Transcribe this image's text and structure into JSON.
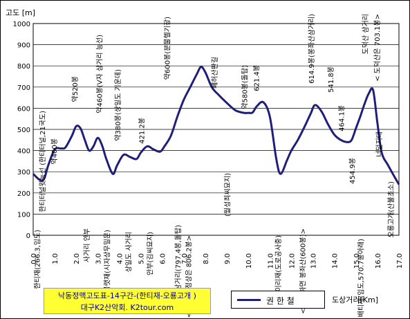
{
  "chart_data": {
    "type": "line",
    "ylabel": "고도 [m]",
    "xlabel": "도상거리[Km]",
    "xlim": [
      0,
      17
    ],
    "ylim": [
      0,
      1000
    ],
    "x_ticks": [
      "0.0",
      "1.0",
      "2.0",
      "3.0",
      "4.0",
      "5.0",
      "6.0",
      "7.0",
      "8.0",
      "9.0",
      "10.0",
      "11.0",
      "12.0",
      "13.0",
      "14.0",
      "15.0",
      "16.0",
      "17.0"
    ],
    "y_ticks": [
      "0",
      "100",
      "200",
      "300",
      "400",
      "500",
      "600",
      "700",
      "800",
      "900",
      "1000"
    ],
    "grid": true,
    "series": [
      {
        "name": "권 한 철",
        "color": "#1f1f7a",
        "x": [
          0.0,
          0.3,
          0.5,
          0.7,
          1.0,
          1.3,
          1.5,
          1.8,
          2.0,
          2.2,
          2.4,
          2.6,
          2.8,
          3.0,
          3.2,
          3.4,
          3.7,
          3.9,
          4.2,
          4.5,
          4.8,
          5.0,
          5.3,
          5.6,
          5.9,
          6.1,
          6.4,
          6.7,
          7.0,
          7.3,
          7.6,
          7.8,
          8.0,
          8.3,
          8.6,
          9.0,
          9.4,
          9.8,
          10.0,
          10.2,
          10.4,
          10.7,
          11.0,
          11.3,
          11.5,
          11.8,
          12.0,
          12.3,
          12.6,
          12.9,
          13.1,
          13.4,
          13.7,
          14.0,
          14.3,
          14.6,
          14.8,
          15.0,
          15.2,
          15.4,
          15.6,
          15.8,
          16.0,
          16.2,
          16.5,
          16.8,
          17.0
        ],
        "values": [
          290,
          262,
          265,
          330,
          405,
          410,
          415,
          470,
          515,
          505,
          450,
          400,
          420,
          460,
          425,
          360,
          290,
          330,
          380,
          370,
          360,
          390,
          420,
          405,
          395,
          420,
          470,
          560,
          640,
          700,
          760,
          795,
          770,
          700,
          665,
          625,
          590,
          578,
          578,
          580,
          610,
          628,
          560,
          360,
          290,
          355,
          400,
          450,
          510,
          575,
          615,
          585,
          525,
          475,
          450,
          440,
          450,
          505,
          560,
          620,
          670,
          685,
          530,
          390,
          330,
          275,
          240
        ]
      }
    ],
    "annotations": [
      "한티재(266.3,임도)",
      "한티터널윗능선 (한티터널,21국도)",
      "약400봉",
      "약520봉",
      "사거리 안부",
      "약460봉(V자 삼거리 능선)",
      "불랫재(시자상무밀문)",
      "약380봉(상일도 기운데)",
      "상일도 사거리",
      "421.2봉",
      "안부(김씨묘지)",
      "약600봉(분물헬기장)",
      "운주산삼거리(797.4봉,돌탑)",
      "< 운주산 정상은  806.2봉>",
      "폐허산판길",
      "(월성최씨묘지)",
      "약580봉(돌탑)",
      "621.4봉",
      "이리재(도로공사중)",
      "< 직진하면 봉좌산(600봉)>",
      "614.9봉(봉좌산삼거리)",
      "541.8봉",
      "464.1봉",
      "454.9봉",
      "배티재(임도,570.7봉아래)",
      "도덕산 삼거리",
      "< 도덕산은  703.1봉>",
      "너덜지대",
      "오룡고개(산불초소)"
    ]
  },
  "title_box": {
    "line1": "낙동정맥고도표-14구간-(한티재-오룡고개 )",
    "line2": "대구K2산악회. K2tour.com"
  },
  "legend_label": "권 한 철"
}
